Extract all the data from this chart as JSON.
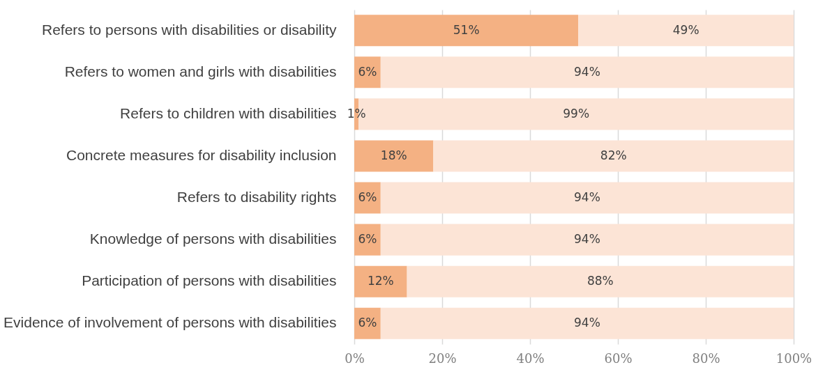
{
  "chart_data": {
    "type": "bar",
    "orientation": "horizontal",
    "stacked": true,
    "categories": [
      "Refers to persons with disabilities or disability",
      "Refers to women and girls with disabilities",
      "Refers to children with disabilities",
      "Concrete measures for disability inclusion",
      "Refers to disability rights",
      "Knowledge of persons with disabilities",
      "Participation of persons with disabilities",
      "Evidence of involvement of persons with disabilities"
    ],
    "series": [
      {
        "color": "#f4b183",
        "values": [
          51,
          6,
          1,
          18,
          6,
          6,
          12,
          6
        ],
        "value_labels": [
          "51%",
          "6%",
          "1%",
          "18%",
          "6%",
          "6%",
          "12%",
          "6%"
        ]
      },
      {
        "color": "#fce4d6",
        "values": [
          49,
          94,
          99,
          82,
          94,
          94,
          88,
          94
        ],
        "value_labels": [
          "49%",
          "94%",
          "99%",
          "82%",
          "94%",
          "94%",
          "88%",
          "94%"
        ]
      }
    ],
    "xlim": [
      0,
      100
    ],
    "xticks": [
      {
        "value": 0,
        "label": "0%"
      },
      {
        "value": 20,
        "label": "20%"
      },
      {
        "value": 40,
        "label": "40%"
      },
      {
        "value": 60,
        "label": "60%"
      },
      {
        "value": 80,
        "label": "80%"
      },
      {
        "value": 100,
        "label": "100%"
      }
    ],
    "grid": "x"
  }
}
